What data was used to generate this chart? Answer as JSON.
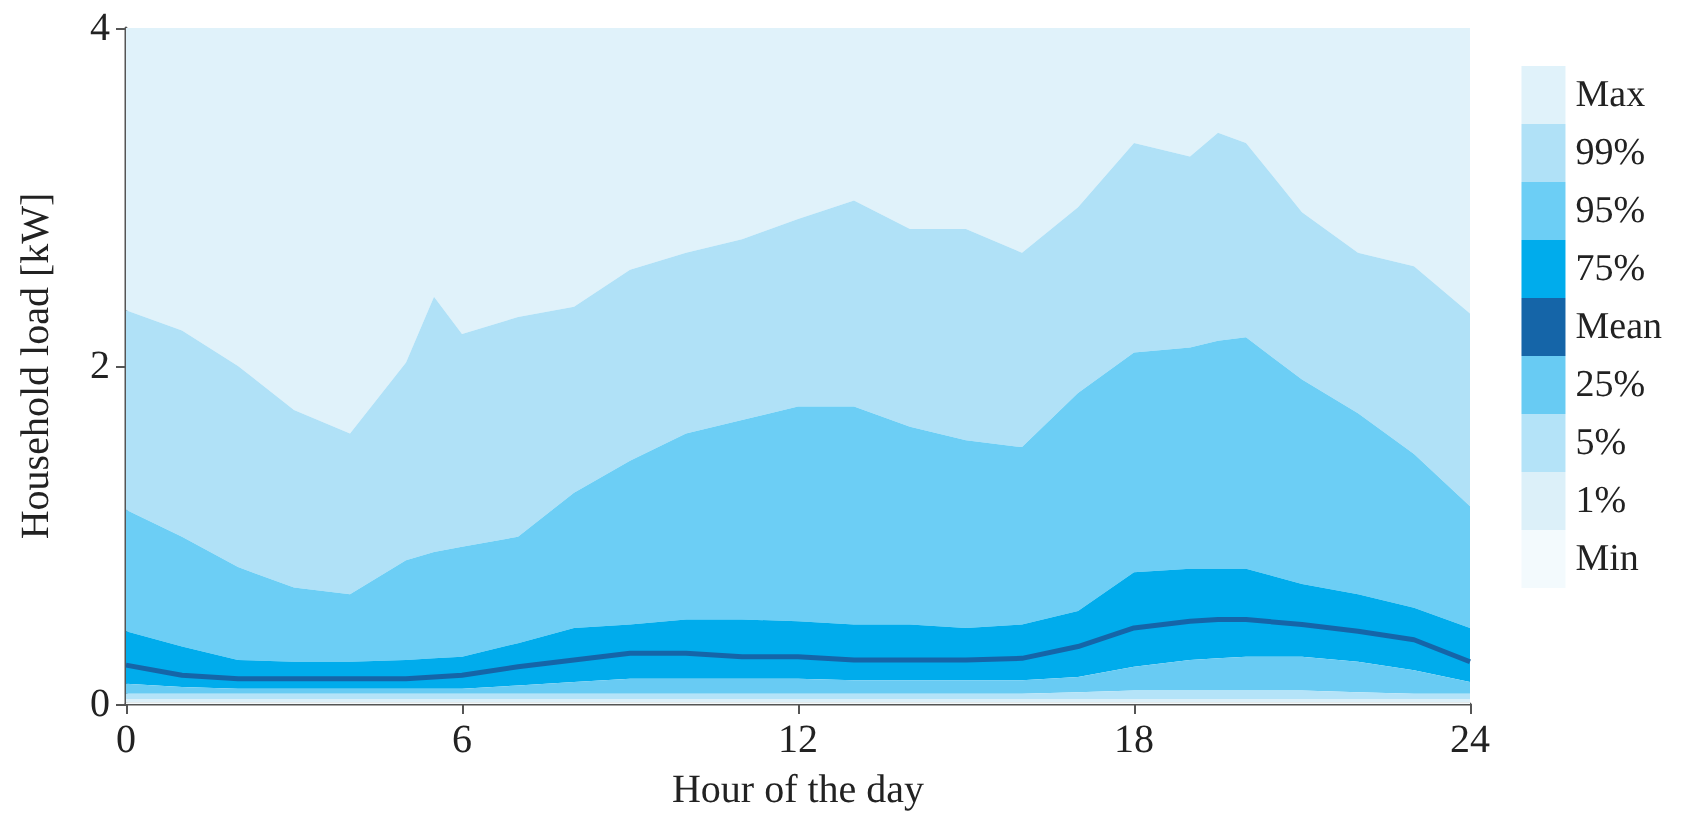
{
  "chart_data": {
    "type": "area",
    "xlabel": "Hour of the day",
    "ylabel": "Household load [kW]",
    "x": [
      0,
      1,
      2,
      3,
      4,
      5,
      5.5,
      6,
      7,
      8,
      9,
      10,
      11,
      12,
      13,
      14,
      15,
      16,
      17,
      18,
      19,
      19.5,
      20,
      21,
      22,
      23,
      24
    ],
    "xlim": [
      0,
      24
    ],
    "xticks": [
      0,
      6,
      12,
      18,
      24
    ],
    "ylim": [
      0,
      4
    ],
    "yticks": [
      0,
      2,
      4
    ],
    "grid": false,
    "legend": "right",
    "marker": "none",
    "series": [
      {
        "name": "Max",
        "color": "#e0f2fa",
        "values": [
          4,
          4,
          4,
          4,
          4,
          4,
          4,
          4,
          4,
          4,
          4,
          4,
          4,
          4,
          4,
          4,
          4,
          4,
          4,
          4,
          4,
          4,
          4,
          4,
          4,
          4,
          4
        ]
      },
      {
        "name": "99%",
        "color": "#b0e1f7",
        "values": [
          2.33,
          2.21,
          2.0,
          1.74,
          1.6,
          2.02,
          2.41,
          2.19,
          2.29,
          2.35,
          2.57,
          2.67,
          2.75,
          2.87,
          2.98,
          2.81,
          2.81,
          2.67,
          2.94,
          3.32,
          3.24,
          3.38,
          3.32,
          2.91,
          2.67,
          2.59,
          2.31
        ]
      },
      {
        "name": "95%",
        "color": "#6ccef5",
        "values": [
          1.15,
          0.99,
          0.81,
          0.69,
          0.65,
          0.85,
          0.9,
          0.93,
          0.99,
          1.25,
          1.44,
          1.6,
          1.68,
          1.76,
          1.76,
          1.64,
          1.56,
          1.52,
          1.84,
          2.08,
          2.11,
          2.15,
          2.17,
          1.92,
          1.72,
          1.48,
          1.17
        ]
      },
      {
        "name": "75%",
        "color": "#00acec",
        "values": [
          0.43,
          0.34,
          0.26,
          0.25,
          0.25,
          0.26,
          0.27,
          0.28,
          0.36,
          0.45,
          0.47,
          0.5,
          0.5,
          0.49,
          0.47,
          0.47,
          0.45,
          0.47,
          0.55,
          0.78,
          0.8,
          0.8,
          0.8,
          0.71,
          0.65,
          0.57,
          0.45
        ]
      },
      {
        "name": "Mean",
        "type": "line",
        "color": "#1565a8",
        "values": [
          0.23,
          0.17,
          0.15,
          0.15,
          0.15,
          0.15,
          0.16,
          0.17,
          0.22,
          0.26,
          0.3,
          0.3,
          0.28,
          0.28,
          0.26,
          0.26,
          0.26,
          0.27,
          0.34,
          0.45,
          0.49,
          0.5,
          0.5,
          0.47,
          0.43,
          0.38,
          0.25
        ]
      },
      {
        "name": "25%",
        "color": "#68cbf3",
        "values": [
          0.12,
          0.1,
          0.09,
          0.09,
          0.09,
          0.09,
          0.09,
          0.09,
          0.11,
          0.13,
          0.15,
          0.15,
          0.15,
          0.15,
          0.14,
          0.14,
          0.14,
          0.14,
          0.16,
          0.22,
          0.26,
          0.27,
          0.28,
          0.28,
          0.25,
          0.2,
          0.13
        ]
      },
      {
        "name": "5%",
        "color": "#b4e3f8",
        "values": [
          0.06,
          0.06,
          0.06,
          0.06,
          0.06,
          0.06,
          0.06,
          0.06,
          0.06,
          0.06,
          0.06,
          0.06,
          0.06,
          0.06,
          0.06,
          0.06,
          0.06,
          0.06,
          0.07,
          0.08,
          0.08,
          0.08,
          0.08,
          0.08,
          0.07,
          0.06,
          0.06
        ]
      },
      {
        "name": "1%",
        "color": "#dcf0f9",
        "values": [
          0.03,
          0.03,
          0.03,
          0.03,
          0.03,
          0.03,
          0.03,
          0.03,
          0.03,
          0.03,
          0.03,
          0.03,
          0.03,
          0.03,
          0.03,
          0.03,
          0.03,
          0.03,
          0.03,
          0.03,
          0.03,
          0.03,
          0.03,
          0.03,
          0.03,
          0.03,
          0.03
        ]
      },
      {
        "name": "Min",
        "color": "#f3fafd",
        "values": [
          0.01,
          0.01,
          0.01,
          0.01,
          0.01,
          0.01,
          0.01,
          0.01,
          0.01,
          0.01,
          0.01,
          0.01,
          0.01,
          0.01,
          0.01,
          0.01,
          0.01,
          0.01,
          0.01,
          0.01,
          0.01,
          0.01,
          0.01,
          0.01,
          0.01,
          0.01,
          0.01
        ]
      }
    ]
  }
}
